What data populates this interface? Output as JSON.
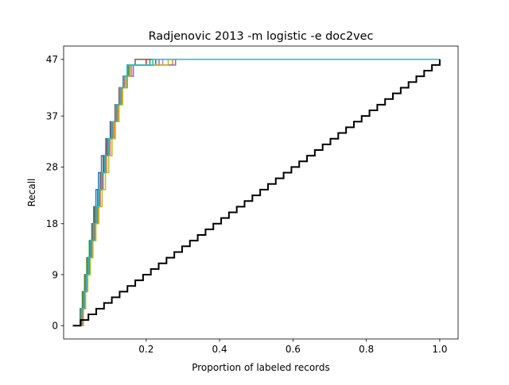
{
  "chart_data": {
    "type": "line",
    "title": "Radjenovic 2013 -m logistic -e doc2vec",
    "xlabel": "Proportion of labeled records",
    "ylabel": "Recall",
    "xlim": [
      -0.025,
      1.05
    ],
    "ylim": [
      -2.35,
      49.35
    ],
    "xticks": [
      0.2,
      0.4,
      0.6,
      0.8,
      1.0
    ],
    "xtick_labels": [
      "0.2",
      "0.4",
      "0.6",
      "0.8",
      "1.0"
    ],
    "yticks": [
      0,
      9,
      18,
      28,
      37,
      47
    ],
    "ytick_labels": [
      "0",
      "9",
      "18",
      "28",
      "37",
      "47"
    ],
    "total_relevant": 47,
    "grid": false,
    "legend": "none",
    "series": [
      {
        "color": "#1f77b4",
        "recall_x": [
          0.018,
          0.025,
          0.03,
          0.035,
          0.04,
          0.046,
          0.052,
          0.057,
          0.063,
          0.07,
          0.078,
          0.09,
          0.102,
          0.116,
          0.132,
          0.148,
          0.16,
          0.226
        ],
        "recall_y": [
          0,
          3,
          6,
          9,
          12,
          15,
          18,
          21,
          24,
          27,
          30,
          33,
          36,
          39,
          42,
          44,
          46,
          47
        ]
      },
      {
        "color": "#ff7f0e",
        "recall_x": [
          0.02,
          0.028,
          0.034,
          0.04,
          0.047,
          0.054,
          0.061,
          0.068,
          0.075,
          0.083,
          0.092,
          0.102,
          0.113,
          0.124,
          0.134,
          0.142,
          0.155,
          0.272
        ],
        "recall_y": [
          0,
          3,
          6,
          9,
          12,
          15,
          18,
          21,
          24,
          27,
          30,
          33,
          36,
          39,
          42,
          44,
          46,
          47
        ]
      },
      {
        "color": "#2ca02c",
        "recall_x": [
          0.014,
          0.02,
          0.026,
          0.032,
          0.038,
          0.045,
          0.052,
          0.06,
          0.068,
          0.077,
          0.087,
          0.097,
          0.108,
          0.12,
          0.13,
          0.14,
          0.152,
          0.21
        ],
        "recall_y": [
          0,
          3,
          6,
          9,
          12,
          15,
          18,
          21,
          24,
          27,
          30,
          33,
          36,
          39,
          42,
          44,
          46,
          47
        ]
      },
      {
        "color": "#d62728",
        "recall_x": [
          0.016,
          0.023,
          0.029,
          0.035,
          0.041,
          0.048,
          0.055,
          0.062,
          0.069,
          0.076,
          0.084,
          0.094,
          0.105,
          0.117,
          0.128,
          0.138,
          0.15,
          0.2
        ],
        "recall_y": [
          0,
          3,
          6,
          9,
          12,
          15,
          18,
          21,
          24,
          27,
          30,
          33,
          36,
          39,
          42,
          44,
          46,
          47
        ]
      },
      {
        "color": "#9467bd",
        "recall_x": [
          0.02,
          0.026,
          0.032,
          0.038,
          0.044,
          0.05,
          0.057,
          0.064,
          0.071,
          0.079,
          0.088,
          0.099,
          0.11,
          0.121,
          0.131,
          0.141,
          0.165,
          0.28
        ],
        "recall_y": [
          0,
          3,
          6,
          9,
          12,
          15,
          18,
          21,
          24,
          27,
          30,
          33,
          36,
          39,
          42,
          44,
          46,
          47
        ]
      },
      {
        "color": "#8c564b",
        "recall_x": [
          0.015,
          0.022,
          0.028,
          0.034,
          0.04,
          0.047,
          0.054,
          0.061,
          0.068,
          0.075,
          0.083,
          0.093,
          0.104,
          0.115,
          0.126,
          0.137,
          0.148,
          0.17
        ],
        "recall_y": [
          0,
          3,
          6,
          9,
          12,
          15,
          18,
          21,
          24,
          27,
          30,
          33,
          36,
          39,
          42,
          44,
          46,
          47
        ]
      },
      {
        "color": "#e377c2",
        "recall_x": [
          0.017,
          0.024,
          0.031,
          0.037,
          0.043,
          0.05,
          0.058,
          0.066,
          0.074,
          0.082,
          0.09,
          0.1,
          0.11,
          0.12,
          0.13,
          0.14,
          0.16,
          0.245
        ],
        "recall_y": [
          0,
          3,
          6,
          9,
          12,
          15,
          18,
          21,
          24,
          27,
          30,
          33,
          36,
          39,
          42,
          44,
          46,
          47
        ]
      },
      {
        "color": "#7f7f7f",
        "recall_x": [
          0.019,
          0.027,
          0.033,
          0.039,
          0.045,
          0.052,
          0.059,
          0.066,
          0.073,
          0.081,
          0.089,
          0.098,
          0.108,
          0.119,
          0.129,
          0.139,
          0.15,
          0.235
        ],
        "recall_y": [
          0,
          3,
          6,
          9,
          12,
          15,
          18,
          21,
          24,
          27,
          30,
          33,
          36,
          39,
          42,
          44,
          46,
          47
        ]
      },
      {
        "color": "#bcbd22",
        "recall_x": [
          0.021,
          0.029,
          0.035,
          0.041,
          0.048,
          0.055,
          0.063,
          0.071,
          0.08,
          0.089,
          0.098,
          0.107,
          0.116,
          0.126,
          0.136,
          0.146,
          0.156,
          0.26
        ],
        "recall_y": [
          0,
          3,
          6,
          9,
          12,
          15,
          18,
          21,
          24,
          27,
          30,
          33,
          36,
          39,
          42,
          44,
          46,
          47
        ]
      },
      {
        "color": "#17becf",
        "recall_x": [
          0.016,
          0.023,
          0.03,
          0.036,
          0.042,
          0.049,
          0.056,
          0.063,
          0.07,
          0.078,
          0.087,
          0.096,
          0.106,
          0.117,
          0.128,
          0.138,
          0.148,
          0.218
        ],
        "recall_y": [
          0,
          3,
          6,
          9,
          12,
          15,
          18,
          21,
          24,
          27,
          30,
          33,
          36,
          39,
          42,
          44,
          46,
          47
        ]
      }
    ],
    "random_baseline": {
      "color": "#000000",
      "x_start": 0.0,
      "x_end": 1.0,
      "y_start": 0,
      "y_end": 47
    }
  }
}
